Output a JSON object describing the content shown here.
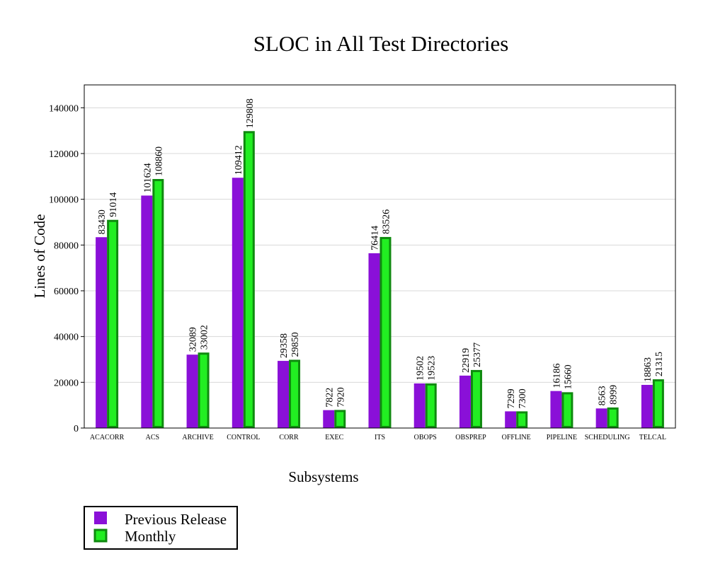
{
  "chart_data": {
    "type": "bar",
    "title": "SLOC in All Test Directories",
    "xlabel": "Subsystems",
    "ylabel": "Lines of Code",
    "ylim": [
      0,
      150000
    ],
    "yticks": [
      0,
      20000,
      40000,
      60000,
      80000,
      100000,
      120000,
      140000
    ],
    "yticks_labels": [
      "0",
      "20000",
      "40000",
      "60000",
      "80000",
      "100000",
      "120000",
      "140000"
    ],
    "grid": true,
    "legend_position": "bottom-left",
    "categories": [
      "ACACORR",
      "ACS",
      "ARCHIVE",
      "CONTROL",
      "CORR",
      "EXEC",
      "ITS",
      "OBOPS",
      "OBSPREP",
      "OFFLINE",
      "PIPELINE",
      "SCHEDULING",
      "TELCAL"
    ],
    "series": [
      {
        "name": "Previous Release",
        "color": "#8a10d8",
        "border": "#7a00c8",
        "values": [
          83430,
          101624,
          32089,
          109412,
          29358,
          7822,
          76414,
          19502,
          22919,
          7299,
          16186,
          8563,
          18863
        ],
        "labels": [
          "83430",
          "101624",
          "32089",
          "109412",
          "29358",
          "7822",
          "76414",
          "19502",
          "22919",
          "7299",
          "16186",
          "8563",
          "18863"
        ]
      },
      {
        "name": "Monthly",
        "color": "#22ee22",
        "border": "#0f8a0f",
        "values": [
          91014,
          108860,
          33002,
          129808,
          29850,
          7920,
          83526,
          19523,
          25377,
          7300,
          15660,
          8999,
          21315
        ],
        "labels": [
          "91014",
          "108860",
          "33002",
          "129808",
          "29850",
          "7920",
          "83526",
          "19523",
          "25377",
          "7300",
          "15660",
          "8999",
          "21315"
        ]
      }
    ]
  }
}
